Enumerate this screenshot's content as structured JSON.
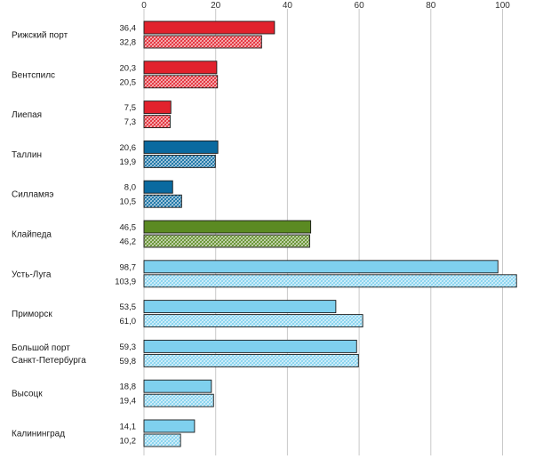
{
  "chart_data": {
    "type": "bar",
    "orientation": "horizontal",
    "xlim": [
      0,
      105
    ],
    "xticks": [
      0,
      20,
      40,
      60,
      80,
      100
    ],
    "grid": true,
    "categories": [
      {
        "label_lines": [
          "Рижский порт"
        ],
        "color": "#e2222d",
        "values": [
          36.4,
          32.8
        ],
        "value_labels": [
          "36,4",
          "32,8"
        ]
      },
      {
        "label_lines": [
          "Вентспилс"
        ],
        "color": "#e2222d",
        "values": [
          20.3,
          20.5
        ],
        "value_labels": [
          "20,3",
          "20,5"
        ]
      },
      {
        "label_lines": [
          "Лиепая"
        ],
        "color": "#e2222d",
        "values": [
          7.5,
          7.3
        ],
        "value_labels": [
          "7,5",
          "7,3"
        ]
      },
      {
        "label_lines": [
          "Таллин"
        ],
        "color": "#0a6aa0",
        "values": [
          20.6,
          19.9
        ],
        "value_labels": [
          "20,6",
          "19,9"
        ]
      },
      {
        "label_lines": [
          "Силламяэ"
        ],
        "color": "#0a6aa0",
        "values": [
          8.0,
          10.5
        ],
        "value_labels": [
          "8,0",
          "10,5"
        ]
      },
      {
        "label_lines": [
          "Клайпеда"
        ],
        "color": "#5b8a22",
        "values": [
          46.5,
          46.2
        ],
        "value_labels": [
          "46,5",
          "46,2"
        ]
      },
      {
        "label_lines": [
          "Усть-Луга"
        ],
        "color": "#7fd0ee",
        "values": [
          98.7,
          103.9
        ],
        "value_labels": [
          "98,7",
          "103,9"
        ]
      },
      {
        "label_lines": [
          "Приморск"
        ],
        "color": "#7fd0ee",
        "values": [
          53.5,
          61.0
        ],
        "value_labels": [
          "53,5",
          "61,0"
        ]
      },
      {
        "label_lines": [
          "Большой порт",
          "Санкт-Петербурга"
        ],
        "color": "#7fd0ee",
        "values": [
          59.3,
          59.8
        ],
        "value_labels": [
          "59,3",
          "59,8"
        ]
      },
      {
        "label_lines": [
          "Высоцк"
        ],
        "color": "#7fd0ee",
        "values": [
          18.8,
          19.4
        ],
        "value_labels": [
          "18,8",
          "19,4"
        ]
      },
      {
        "label_lines": [
          "Калининград"
        ],
        "color": "#7fd0ee",
        "values": [
          14.1,
          10.2
        ],
        "value_labels": [
          "14,1",
          "10,2"
        ]
      }
    ],
    "series": [
      {
        "style": "solid"
      },
      {
        "style": "crosshatch"
      }
    ]
  }
}
